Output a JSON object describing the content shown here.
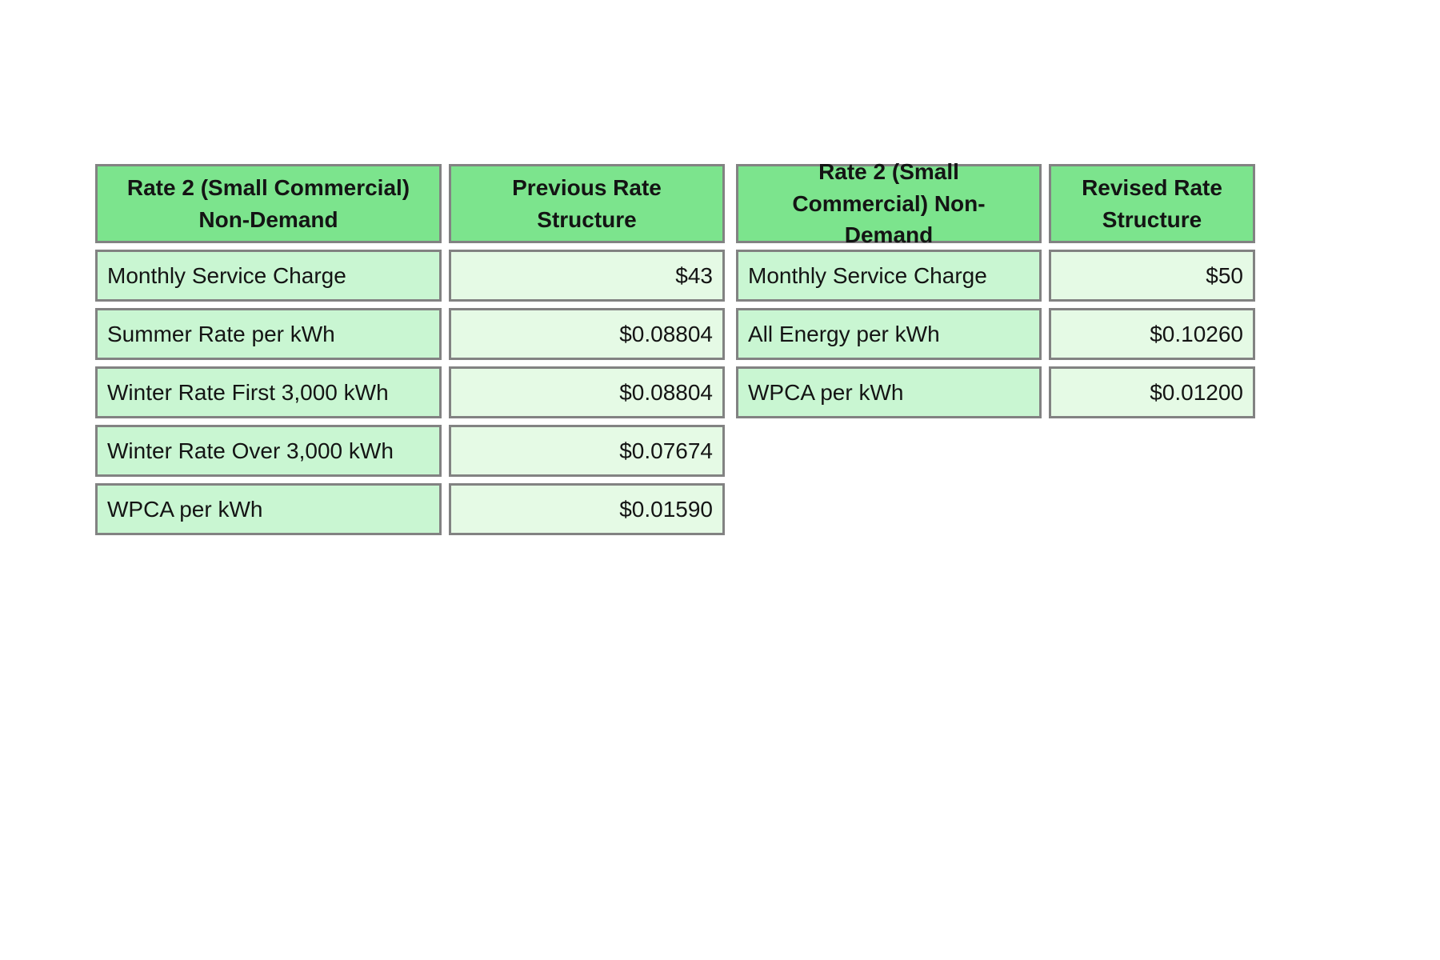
{
  "colors": {
    "page_background": "#ffffff",
    "header_cell_background": "#7ce48d",
    "label_cell_background": "#c9f6d2",
    "value_cell_background": "#e5fae5",
    "cell_border": "#828282",
    "text": "#141414"
  },
  "tables": [
    {
      "id": "previous",
      "header": {
        "rate_class": "Rate 2 (Small Commercial) Non-Demand",
        "structure": "Previous Rate Structure"
      },
      "rows": [
        {
          "label": "Monthly Service Charge",
          "value": "$43"
        },
        {
          "label": "Summer Rate per kWh",
          "value": "$0.08804"
        },
        {
          "label": "Winter Rate First 3,000 kWh",
          "value": "$0.08804"
        },
        {
          "label": "Winter Rate Over 3,000 kWh",
          "value": "$0.07674"
        },
        {
          "label": "WPCA per kWh",
          "value": "$0.01590"
        }
      ]
    },
    {
      "id": "revised",
      "header": {
        "rate_class": "Rate 2 (Small Commercial) Non-Demand",
        "structure": "Revised Rate Structure"
      },
      "rows": [
        {
          "label": "Monthly Service Charge",
          "value": "$50"
        },
        {
          "label": "All Energy per kWh",
          "value": "$0.10260"
        },
        {
          "label": "WPCA per kWh",
          "value": "$0.01200"
        }
      ]
    }
  ],
  "chart_data": {
    "type": "table",
    "tables": [
      {
        "title": "Rate 2 (Small Commercial) Non-Demand — Previous Rate Structure",
        "columns": [
          "Rate 2 (Small Commercial) Non-Demand",
          "Previous Rate Structure"
        ],
        "rows": [
          [
            "Monthly Service Charge",
            "$43"
          ],
          [
            "Summer Rate per kWh",
            "$0.08804"
          ],
          [
            "Winter Rate First 3,000 kWh",
            "$0.08804"
          ],
          [
            "Winter Rate Over 3,000 kWh",
            "$0.07674"
          ],
          [
            "WPCA per kWh",
            "$0.01590"
          ]
        ]
      },
      {
        "title": "Rate 2 (Small Commercial) Non-Demand — Revised Rate Structure",
        "columns": [
          "Rate 2 (Small Commercial) Non-Demand",
          "Revised Rate Structure"
        ],
        "rows": [
          [
            "Monthly Service Charge",
            "$50"
          ],
          [
            "All Energy per kWh",
            "$0.10260"
          ],
          [
            "WPCA per kWh",
            "$0.01200"
          ]
        ]
      }
    ]
  }
}
